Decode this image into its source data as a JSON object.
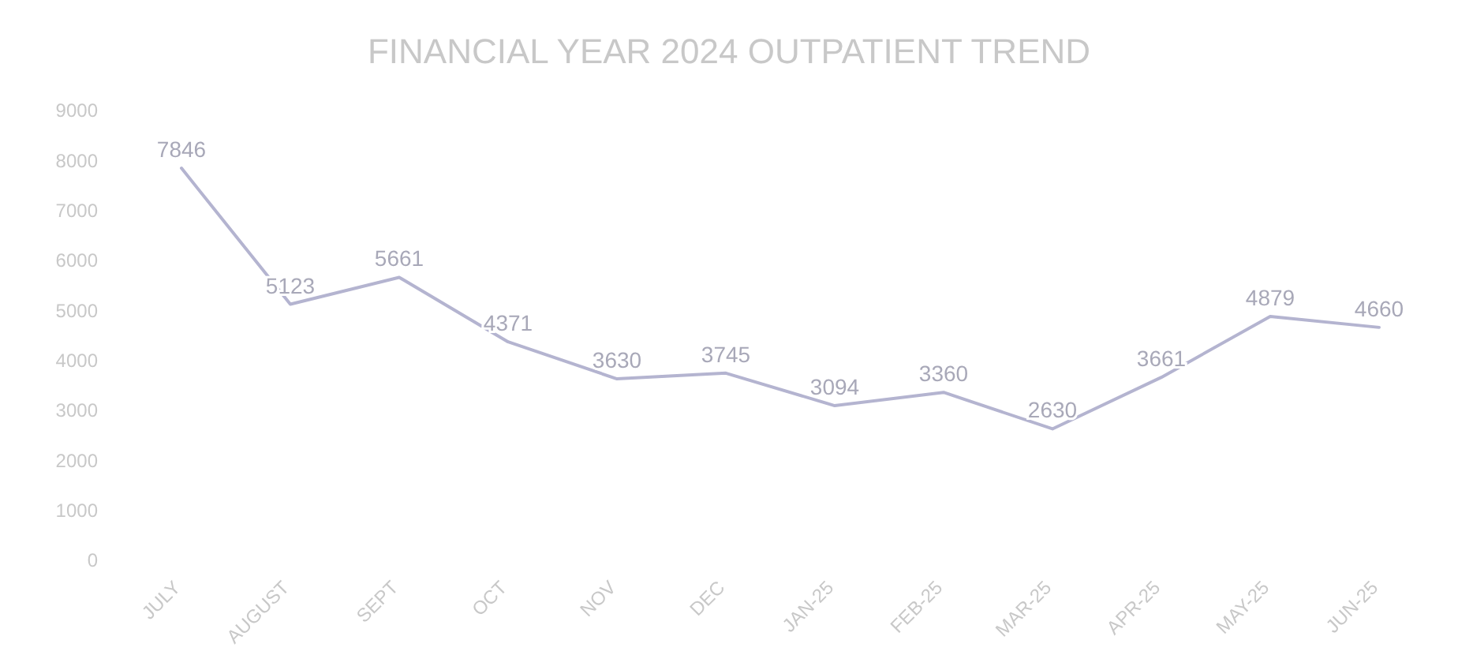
{
  "chart_data": {
    "type": "line",
    "title": "FINANCIAL YEAR 2024 OUTPATIENT TREND",
    "categories": [
      "JULY",
      "AUGUST",
      "SEPT",
      "OCT",
      "NOV",
      "DEC",
      "JAN-25",
      "FEB-25",
      "MAR-25",
      "APR-25",
      "MAY-25",
      "JUN-25"
    ],
    "series": [
      {
        "color": "#b4b4d0",
        "values": [
          7846,
          5123,
          5661,
          4371,
          3630,
          3745,
          3094,
          3360,
          2630,
          3661,
          4879,
          4660
        ]
      }
    ],
    "ylim": [
      0,
      9000
    ],
    "yticks": [
      0,
      1000,
      2000,
      3000,
      4000,
      5000,
      6000,
      7000,
      8000,
      9000
    ],
    "data_labels": true,
    "grid": false,
    "marker": "none",
    "line_style": "solid"
  }
}
